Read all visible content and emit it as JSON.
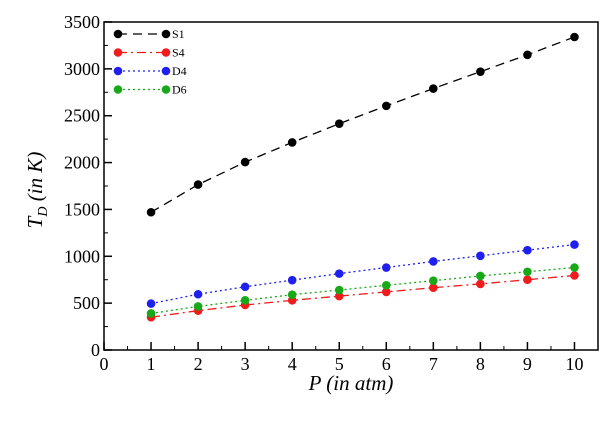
{
  "chart_data": {
    "type": "line",
    "xlabel": "P (in atm)",
    "ylabel_main": "T",
    "ylabel_sub": "D",
    "ylabel_rest": " (in K)",
    "xlim": [
      0,
      10.5
    ],
    "ylim": [
      0,
      3500
    ],
    "x_ticks": [
      0,
      1,
      2,
      3,
      4,
      5,
      6,
      7,
      8,
      9,
      10
    ],
    "y_ticks": [
      0,
      500,
      1000,
      1500,
      2000,
      2500,
      3000,
      3500
    ],
    "grid": false,
    "legend_position": "top-left",
    "x": [
      1,
      2,
      3,
      4,
      5,
      6,
      7,
      8,
      9,
      10
    ],
    "series": [
      {
        "name": "S1",
        "color": "#000000",
        "line_style": "dashed",
        "values": [
          1470,
          1765,
          2005,
          2215,
          2415,
          2605,
          2790,
          2970,
          3150,
          3340
        ]
      },
      {
        "name": "S4",
        "color": "#ee1c1c",
        "line_style": "dash-dot",
        "values": [
          350,
          420,
          480,
          530,
          575,
          620,
          665,
          705,
          750,
          795
        ]
      },
      {
        "name": "D4",
        "color": "#2020ee",
        "line_style": "dotted",
        "values": [
          495,
          595,
          675,
          745,
          815,
          880,
          945,
          1005,
          1065,
          1125
        ]
      },
      {
        "name": "D6",
        "color": "#18a818",
        "line_style": "dotted",
        "values": [
          390,
          465,
          530,
          590,
          640,
          690,
          740,
          790,
          835,
          880
        ]
      }
    ]
  }
}
